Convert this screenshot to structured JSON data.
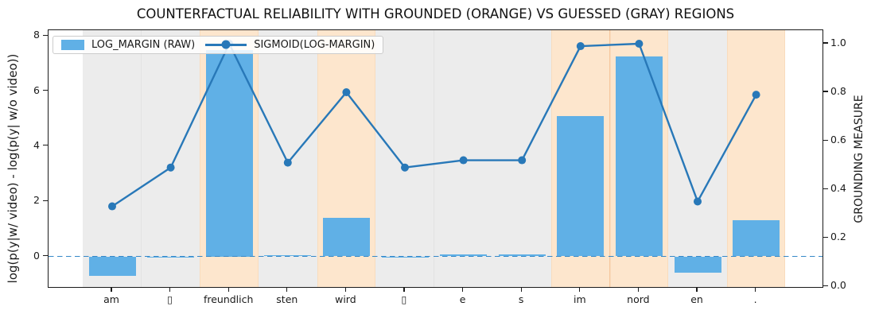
{
  "title": "COUNTERFACTUAL RELIABILITY WITH GROUNDED (ORANGE) VS GUESSED (GRAY) REGIONS",
  "left_axis": {
    "label": "log(p(y|w/ video) - log(p(y| w/o video))",
    "tick_labels": [
      "0",
      "2",
      "4",
      "6",
      "8"
    ]
  },
  "right_axis": {
    "label": "GROUNDING MEASURE",
    "tick_labels": [
      "0.0",
      "0.2",
      "0.4",
      "0.6",
      "0.8",
      "1.0"
    ]
  },
  "legend": {
    "items": [
      {
        "label": "LOG_MARGIN (RAW)",
        "marker": "patch"
      },
      {
        "label": "SIGMOID(LOG-MARGIN)",
        "marker": "line-dot"
      }
    ]
  },
  "chart_data": {
    "type": "bar",
    "categories": [
      "am",
      "▯",
      "freundlich",
      "sten",
      "wird",
      "▯",
      "e",
      "s",
      "im",
      "nord",
      "en",
      "."
    ],
    "series": [
      {
        "name": "LOG_MARGIN (RAW)",
        "type": "bar",
        "axis": "left",
        "values": [
          -0.7,
          -0.04,
          7.5,
          0.05,
          1.4,
          -0.04,
          0.08,
          0.08,
          5.1,
          7.25,
          -0.6,
          1.3
        ]
      },
      {
        "name": "SIGMOID(LOG-MARGIN)",
        "type": "line",
        "axis": "right",
        "values": [
          0.33,
          0.49,
          1.0,
          0.51,
          0.8,
          0.49,
          0.52,
          0.52,
          0.99,
          1.0,
          0.35,
          0.79
        ]
      }
    ],
    "regions": [
      "guessed",
      "guessed",
      "grounded",
      "guessed",
      "grounded",
      "guessed",
      "guessed",
      "guessed",
      "grounded",
      "grounded",
      "guessed",
      "grounded"
    ],
    "region_legend": {
      "grounded": "orange",
      "guessed": "gray"
    },
    "left_ylim": [
      -1.17,
      8.21
    ],
    "right_ylim": [
      0.0,
      1.05
    ],
    "zero_line": 0,
    "grid": false,
    "legend_position": "upper left",
    "colors": {
      "bar": "#60b0e6",
      "line": "#2878b8",
      "zero_line": "#3588c8",
      "region_grounded": "#fde6cd",
      "region_guessed": "#ececec",
      "seam_grounded": "#f6c79e",
      "seam_guessed": "#e2e2e2",
      "spine": "#1b1b1b"
    }
  }
}
